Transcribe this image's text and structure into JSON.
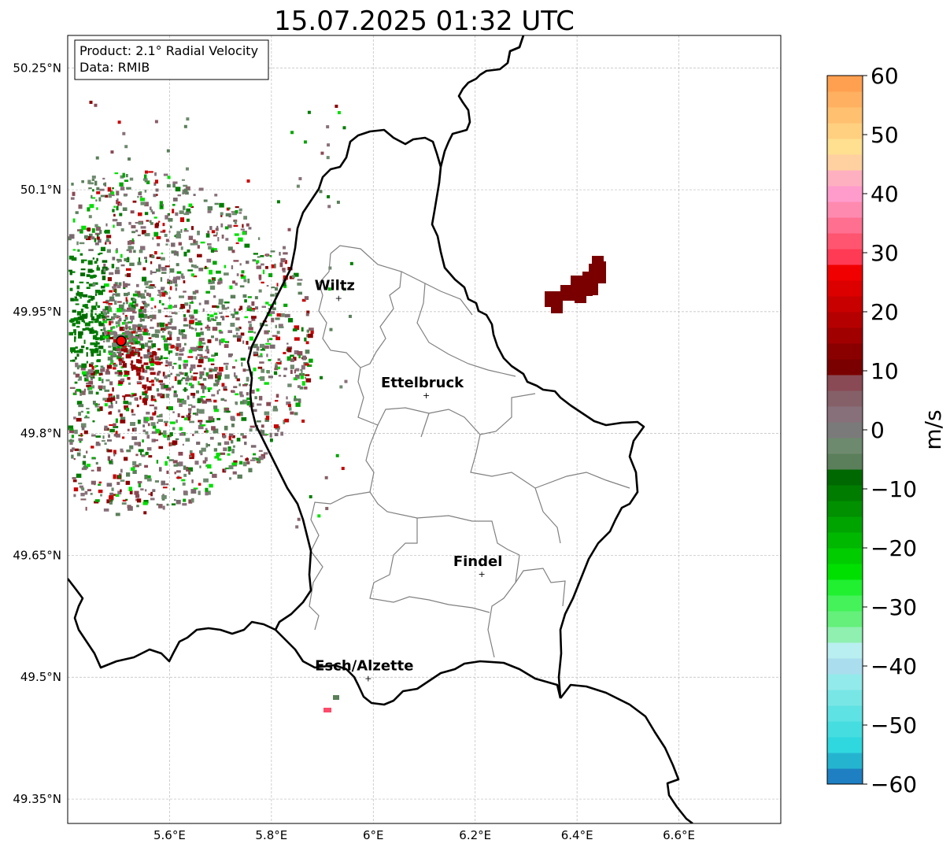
{
  "title": "15.07.2025 01:32 UTC",
  "info_box": {
    "product_line": "Product: 2.1° Radial Velocity",
    "data_line": "Data: RMIB"
  },
  "map": {
    "lon_range": [
      5.4,
      6.8
    ],
    "lat_range": [
      49.32,
      50.29
    ],
    "lon_ticks": [
      {
        "value": 5.6,
        "label": "5.6°E"
      },
      {
        "value": 5.8,
        "label": "5.8°E"
      },
      {
        "value": 6.0,
        "label": "6°E"
      },
      {
        "value": 6.2,
        "label": "6.2°E"
      },
      {
        "value": 6.4,
        "label": "6.4°E"
      },
      {
        "value": 6.6,
        "label": "6.6°E"
      }
    ],
    "lat_ticks": [
      {
        "value": 50.25,
        "label": "50.25°N"
      },
      {
        "value": 50.1,
        "label": "50.1°N"
      },
      {
        "value": 49.95,
        "label": "49.95°N"
      },
      {
        "value": 49.8,
        "label": "49.8°N"
      },
      {
        "value": 49.65,
        "label": "49.65°N"
      },
      {
        "value": 49.5,
        "label": "49.5°N"
      },
      {
        "value": 49.35,
        "label": "49.35°N"
      }
    ],
    "radar_site": {
      "lon": 5.505,
      "lat": 49.914
    },
    "cities": [
      {
        "name": "Wiltz",
        "lon": 5.932,
        "lat": 49.967
      },
      {
        "name": "Ettelbruck",
        "lon": 6.104,
        "lat": 49.847
      },
      {
        "name": "Findel",
        "lon": 6.213,
        "lat": 49.627
      },
      {
        "name": "Esch/Alzette",
        "lon": 5.99,
        "lat": 49.499
      }
    ]
  },
  "colorbar": {
    "label": "m/s",
    "min": -60,
    "max": 60,
    "ticks": [
      {
        "value": 60,
        "label": "60"
      },
      {
        "value": 50,
        "label": "50"
      },
      {
        "value": 40,
        "label": "40"
      },
      {
        "value": 30,
        "label": "30"
      },
      {
        "value": 20,
        "label": "20"
      },
      {
        "value": 10,
        "label": "10"
      },
      {
        "value": 0,
        "label": "0"
      },
      {
        "value": -10,
        "label": "−10"
      },
      {
        "value": -20,
        "label": "−20"
      },
      {
        "value": -30,
        "label": "−30"
      },
      {
        "value": -40,
        "label": "−40"
      },
      {
        "value": -50,
        "label": "−50"
      },
      {
        "value": -60,
        "label": "−60"
      }
    ],
    "colors": [
      "#1e7fc2",
      "#25b4d0",
      "#2fd8de",
      "#45dde0",
      "#5fe2e3",
      "#79e6e6",
      "#93eaea",
      "#ade",
      "#b9eff0",
      "#8ff0b0",
      "#64f07a",
      "#45f25a",
      "#20f030",
      "#00e000",
      "#00cc00",
      "#00b800",
      "#00a400",
      "#009000",
      "#007c00",
      "#006800",
      "#5a7f5a",
      "#6e8a6e",
      "#7a7a7a",
      "#88707a",
      "#866068",
      "#8a4a55",
      "#7a0000",
      "#8a0000",
      "#a00000",
      "#b50000",
      "#c80000",
      "#dc0000",
      "#f00000",
      "#ff3a55",
      "#ff5570",
      "#ff7090",
      "#ff8ab0",
      "#ff9ccc",
      "#ffb0c0",
      "#ffd0a0",
      "#ffe090",
      "#ffd080",
      "#ffc070",
      "#ffb060",
      "#ffa050"
    ]
  }
}
